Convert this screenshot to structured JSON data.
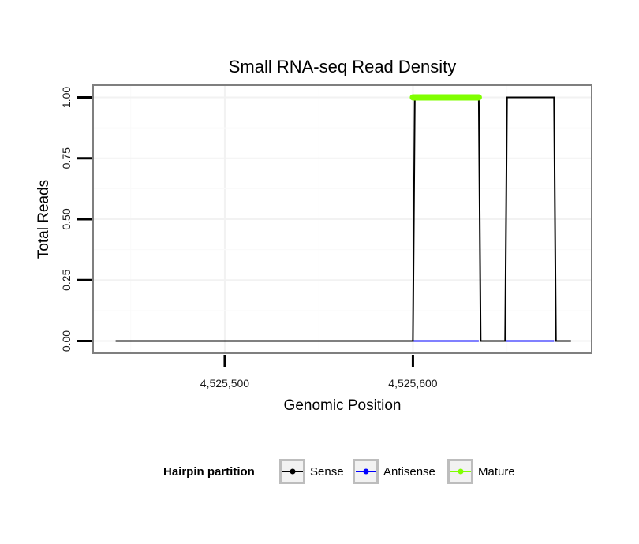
{
  "chart_data": {
    "type": "line",
    "title": "Small RNA-seq Read Density",
    "xlabel": "Genomic Position",
    "ylabel": "Total Reads",
    "xlim": [
      4525430,
      4525695
    ],
    "ylim": [
      -0.05,
      1.05
    ],
    "x_ticks": [
      4525500,
      4525600
    ],
    "x_tick_labels": [
      "4,525,500",
      "4,525,600"
    ],
    "y_ticks": [
      0,
      0.25,
      0.5,
      0.75,
      1
    ],
    "y_tick_labels": [
      "0.00",
      "0.25",
      "0.50",
      "0.75",
      "1.00"
    ],
    "grid": true,
    "series": [
      {
        "name": "Sense",
        "color": "#000000",
        "x": [
          4525442,
          4525600,
          4525601,
          4525635,
          4525636,
          4525649,
          4525650,
          4525675,
          4525676,
          4525684
        ],
        "y": [
          0,
          0,
          1,
          1,
          0,
          0,
          1,
          1,
          0,
          0
        ]
      },
      {
        "name": "Antisense",
        "color": "#0000ff",
        "x": [
          4525600,
          4525635,
          4525649,
          4525675
        ],
        "y": [
          0,
          0,
          0,
          0
        ]
      },
      {
        "name": "Mature",
        "color": "#80ff00",
        "x": [
          4525600,
          4525635
        ],
        "y": [
          1,
          1
        ]
      }
    ],
    "legend": {
      "title": "Hairpin partition",
      "position": "bottom",
      "entries": [
        "Sense",
        "Antisense",
        "Mature"
      ]
    }
  }
}
